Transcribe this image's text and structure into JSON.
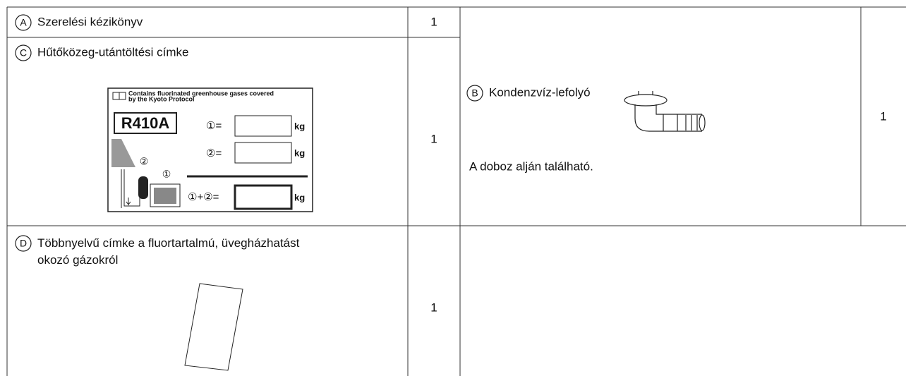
{
  "table": {
    "rows": [
      {
        "letter": "A",
        "name": "Szerelési kézikönyv",
        "qty": 1
      },
      {
        "letter": "C",
        "name": "Hűtőközeg-utántöltési címke",
        "qty": 1,
        "label": {
          "heading_1": "Contains fluorinated greenhouse gases covered",
          "heading_2": "by the Kyoto Protocol",
          "refrigerant": "R410A",
          "line_1": "①=",
          "line_2": "②=",
          "line_total": "①+②=",
          "unit": "kg",
          "marker_1": "①",
          "marker_2": "②"
        }
      },
      {
        "letter": "B",
        "name": "Kondenzvíz-lefolyó",
        "note": "A doboz alján található.",
        "qty": 1
      },
      {
        "letter": "D",
        "name": "Többnyelvű címke a fluortartalmú, üvegházhatást okozó gázokról",
        "qty": 1
      }
    ]
  }
}
